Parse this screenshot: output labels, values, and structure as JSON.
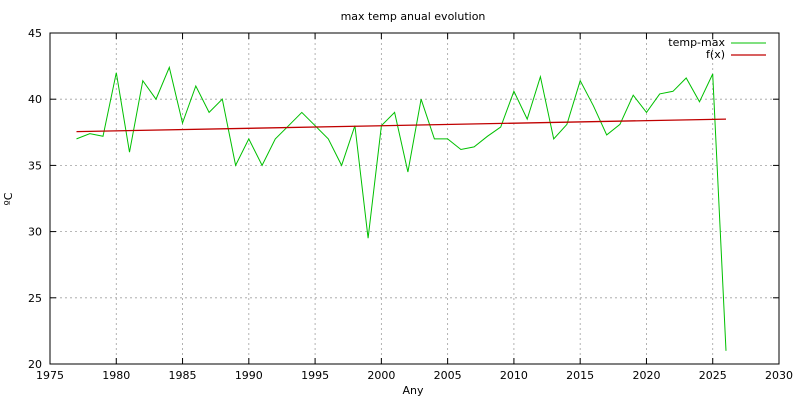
{
  "chart_data": {
    "type": "line",
    "title": "max temp anual evolution",
    "xlabel": "Any",
    "ylabel": "ºC",
    "xlim": [
      1975,
      2030
    ],
    "ylim": [
      20,
      45
    ],
    "xticks": [
      1975,
      1980,
      1985,
      1990,
      1995,
      2000,
      2005,
      2010,
      2015,
      2020,
      2025,
      2030
    ],
    "yticks": [
      20,
      25,
      30,
      35,
      40,
      45
    ],
    "grid": true,
    "legend_position": "top-right",
    "series": [
      {
        "name": "temp-max",
        "color": "#00c000",
        "x": [
          1977,
          1978,
          1979,
          1980,
          1981,
          1982,
          1983,
          1984,
          1985,
          1986,
          1987,
          1988,
          1989,
          1990,
          1991,
          1992,
          1993,
          1994,
          1995,
          1996,
          1997,
          1998,
          1999,
          2000,
          2001,
          2002,
          2003,
          2004,
          2005,
          2006,
          2007,
          2008,
          2009,
          2010,
          2011,
          2012,
          2013,
          2014,
          2015,
          2016,
          2017,
          2018,
          2019,
          2020,
          2021,
          2022,
          2023,
          2024,
          2025,
          2026
        ],
        "y": [
          37.0,
          37.4,
          37.2,
          42.0,
          36.0,
          41.4,
          40.0,
          42.4,
          38.2,
          41.0,
          39.0,
          40.0,
          35.0,
          37.0,
          35.0,
          37.0,
          38.0,
          39.0,
          38.0,
          37.0,
          35.0,
          38.0,
          29.5,
          38.0,
          39.0,
          34.5,
          40.0,
          37.0,
          37.0,
          36.2,
          36.4,
          37.2,
          37.9,
          40.6,
          38.5,
          41.7,
          37.0,
          38.1,
          41.4,
          39.5,
          37.3,
          38.1,
          40.3,
          39.0,
          40.4,
          40.6,
          41.6,
          39.8,
          41.9,
          21.0
        ]
      },
      {
        "name": "f(x)",
        "color": "#c00000",
        "x": [
          1977,
          2026
        ],
        "y": [
          37.55,
          38.5
        ]
      }
    ]
  }
}
